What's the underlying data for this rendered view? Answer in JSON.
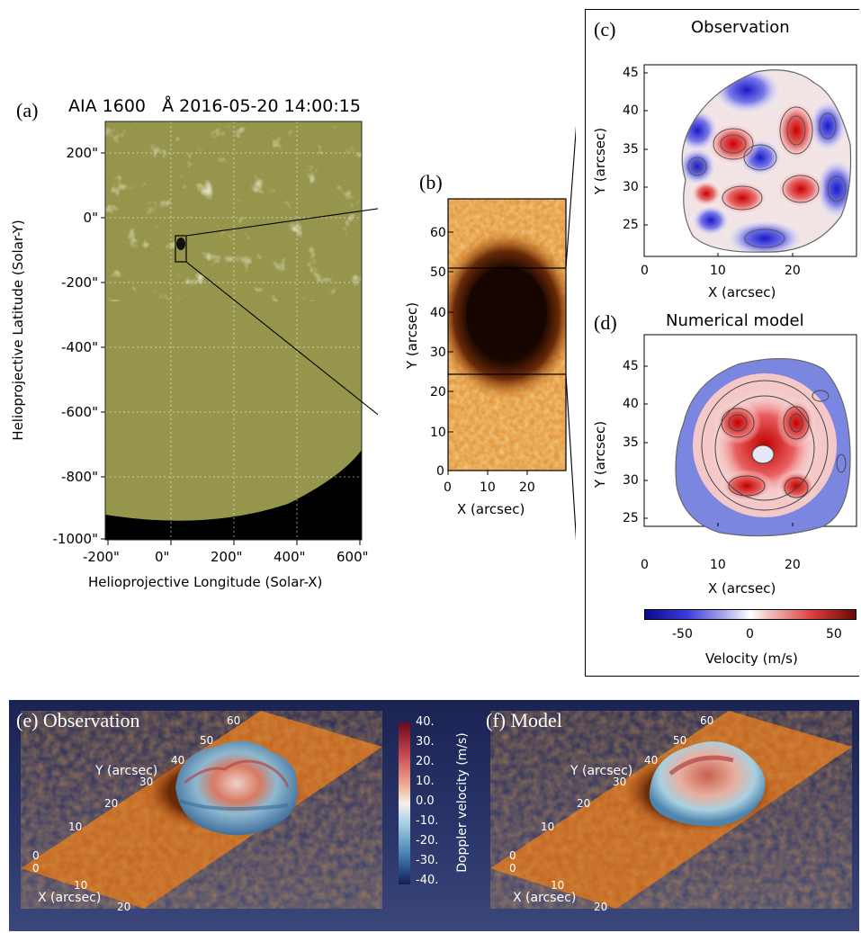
{
  "panel_a": {
    "label": "(a)",
    "title": "AIA 1600   Å 2016-05-20 14:00:15",
    "ylabel": "Helioprojective Latitude (Solar-Y)",
    "xlabel": "Helioprojective Longitude (Solar-X)",
    "yticks": [
      "200\"",
      "0\"",
      "-200\"",
      "-400\"",
      "-600\"",
      "-800\"",
      "-1000\""
    ],
    "xticks": [
      "-200\"",
      "0\"",
      "200\"",
      "400\"",
      "600\""
    ]
  },
  "panel_b": {
    "label": "(b)",
    "ylabel": "Y (arcsec)",
    "xlabel": "X (arcsec)",
    "yticks": [
      "60",
      "50",
      "40",
      "30",
      "20",
      "10",
      "0"
    ],
    "xticks": [
      "0",
      "10",
      "20"
    ]
  },
  "panel_c": {
    "label": "(c)",
    "title": "Observation",
    "ylabel": "Y (arcsec)",
    "xlabel": "X (arcsec)",
    "yticks": [
      "45",
      "40",
      "35",
      "30",
      "25"
    ],
    "xticks": [
      "0",
      "10",
      "20"
    ]
  },
  "panel_d": {
    "label": "(d)",
    "title": "Numerical model",
    "ylabel": "Y (arcsec)",
    "xlabel": "X (arcsec)",
    "yticks": [
      "45",
      "40",
      "35",
      "30",
      "25"
    ],
    "xticks": [
      "0",
      "10",
      "20"
    ]
  },
  "colorbar_velocity": {
    "ticks": [
      "-50",
      "0",
      "50"
    ],
    "label": "Velocity (m/s)",
    "colors": [
      "#0a0a8c",
      "#ffffff",
      "#8c0a0a"
    ]
  },
  "panel_e": {
    "label": "(e) Observation",
    "ylabel": "Y (arcsec)",
    "xlabel": "X (arcsec)",
    "yticks": [
      "60",
      "50",
      "40",
      "30",
      "20",
      "10",
      "0"
    ],
    "xticks": [
      "0",
      "10",
      "20"
    ]
  },
  "panel_f": {
    "label": "(f) Model",
    "ylabel": "Y (arcsec)",
    "xlabel": "X (arcsec)",
    "yticks": [
      "60",
      "50",
      "40",
      "30",
      "20",
      "10",
      "0"
    ],
    "xticks": [
      "0",
      "10",
      "20"
    ]
  },
  "colorbar_doppler": {
    "ticks": [
      "40.",
      "30.",
      "20.",
      "10.",
      "0.0",
      "-10.",
      "-20.",
      "-30.",
      "-40."
    ],
    "label": "Doppler velocity (m/s)"
  }
}
